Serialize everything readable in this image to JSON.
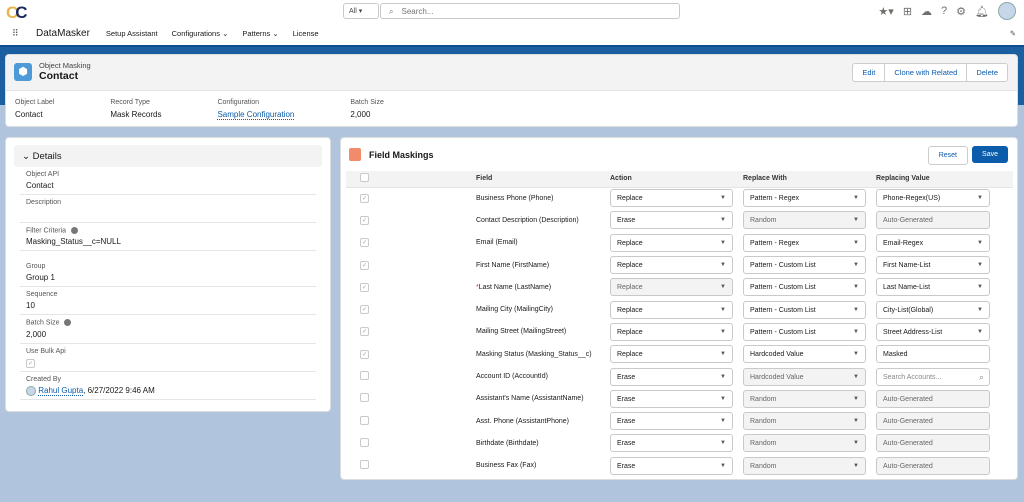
{
  "global": {
    "logo": "CC",
    "search_scope": "All",
    "search_placeholder": "Search..."
  },
  "nav": {
    "app_name": "DataMasker",
    "items": [
      "Setup Assistant",
      "Configurations",
      "Patterns",
      "License"
    ]
  },
  "record": {
    "object_type": "Object Masking",
    "title": "Contact",
    "actions": [
      "Edit",
      "Clone with Related",
      "Delete"
    ],
    "highlights": [
      {
        "label": "Object Label",
        "value": "Contact"
      },
      {
        "label": "Record Type",
        "value": "Mask Records"
      },
      {
        "label": "Configuration",
        "value": "Sample Configuration",
        "link": true
      },
      {
        "label": "Batch Size",
        "value": "2,000"
      }
    ]
  },
  "details": {
    "section_title": "Details",
    "fields": [
      {
        "label": "Object API",
        "value": "Contact"
      },
      {
        "label": "Description",
        "value": ""
      },
      {
        "label": "Filter Criteria",
        "value": "Masking_Status__c=NULL",
        "info": true
      },
      {
        "label": "Group",
        "value": "Group 1"
      },
      {
        "label": "Sequence",
        "value": "10"
      },
      {
        "label": "Batch Size",
        "value": "2,000",
        "info": true
      },
      {
        "label": "Use Bulk Api",
        "value": "",
        "checkbox": true,
        "checked": true
      }
    ],
    "created_by_label": "Created By",
    "created_by_user": "Rahul Gupta",
    "created_by_date": ", 6/27/2022 9:46 AM"
  },
  "maskings": {
    "title": "Field Maskings",
    "reset_label": "Reset",
    "save_label": "Save",
    "columns": [
      "Field",
      "Action",
      "Replace With",
      "Replacing Value"
    ],
    "rows": [
      {
        "checked": true,
        "field": "Business Phone (Phone)",
        "action": "Replace",
        "replace_with": "Pattern - Regex",
        "value": "Phone-Regex(US)",
        "value_type": "select"
      },
      {
        "checked": true,
        "field": "Contact Description (Description)",
        "action": "Erase",
        "replace_with": "Random",
        "replace_disabled": true,
        "value": "Auto-Generated",
        "value_type": "disabled"
      },
      {
        "checked": true,
        "field": "Email (Email)",
        "action": "Replace",
        "replace_with": "Pattern - Regex",
        "value": "Email-Regex",
        "value_type": "select"
      },
      {
        "checked": true,
        "field": "First Name (FirstName)",
        "action": "Replace",
        "replace_with": "Pattern - Custom List",
        "value": "First Name-List",
        "value_type": "select"
      },
      {
        "checked": true,
        "required": true,
        "field": "Last Name (LastName)",
        "action": "Replace",
        "action_disabled": true,
        "replace_with": "Pattern - Custom List",
        "value": "Last Name-List",
        "value_type": "select"
      },
      {
        "checked": true,
        "field": "Mailing City (MailingCity)",
        "action": "Replace",
        "replace_with": "Pattern - Custom List",
        "value": "City-List(Global)",
        "value_type": "select"
      },
      {
        "checked": true,
        "field": "Mailing Street (MailingStreet)",
        "action": "Replace",
        "replace_with": "Pattern - Custom List",
        "value": "Street Address-List",
        "value_type": "select"
      },
      {
        "checked": true,
        "field": "Masking Status (Masking_Status__c)",
        "action": "Replace",
        "replace_with": "Hardcoded Value",
        "value": "Masked",
        "value_type": "text"
      },
      {
        "checked": false,
        "field": "Account ID (AccountId)",
        "action": "Erase",
        "replace_with": "Hardcoded Value",
        "replace_disabled": true,
        "value": "Search Accounts...",
        "value_type": "search"
      },
      {
        "checked": false,
        "field": "Assistant's Name (AssistantName)",
        "action": "Erase",
        "replace_with": "Random",
        "replace_disabled": true,
        "value": "Auto-Generated",
        "value_type": "disabled"
      },
      {
        "checked": false,
        "field": "Asst. Phone (AssistantPhone)",
        "action": "Erase",
        "replace_with": "Random",
        "replace_disabled": true,
        "value": "Auto-Generated",
        "value_type": "disabled"
      },
      {
        "checked": false,
        "field": "Birthdate (Birthdate)",
        "action": "Erase",
        "replace_with": "Random",
        "replace_disabled": true,
        "value": "Auto-Generated",
        "value_type": "disabled"
      },
      {
        "checked": false,
        "field": "Business Fax (Fax)",
        "action": "Erase",
        "replace_with": "Random",
        "replace_disabled": true,
        "value": "Auto-Generated",
        "value_type": "disabled"
      }
    ]
  },
  "colors": {
    "brand": "#0b5cab",
    "band": "#1b5fa0",
    "background": "#b0c4de"
  }
}
